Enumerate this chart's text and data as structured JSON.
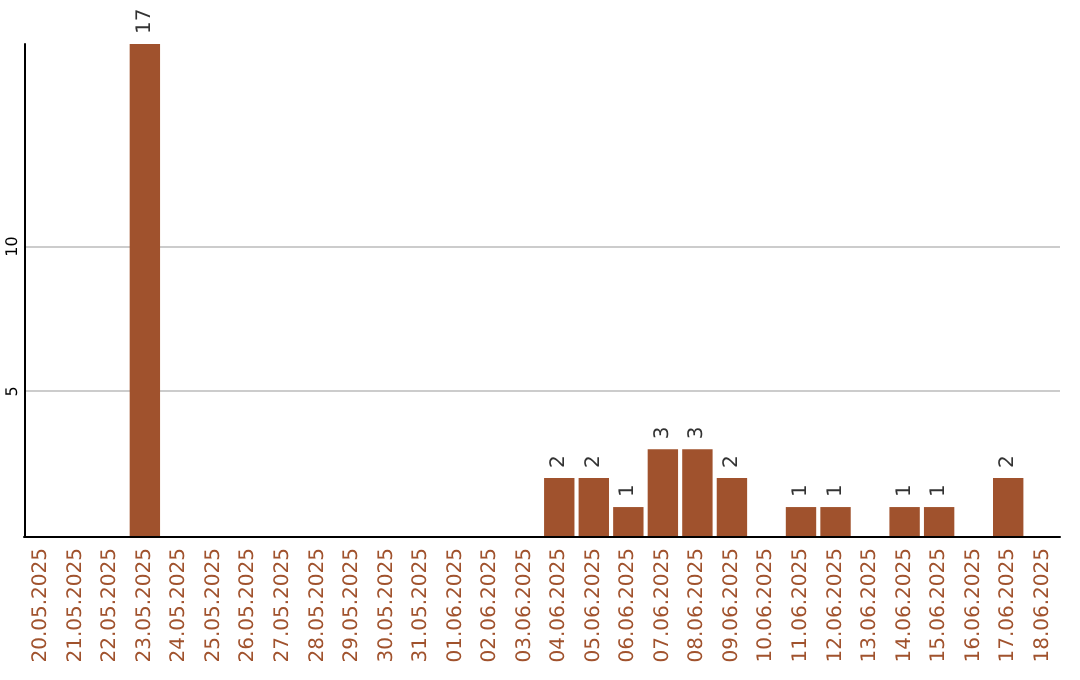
{
  "chart_data": {
    "type": "bar",
    "categories": [
      "20.05.2025",
      "21.05.2025",
      "22.05.2025",
      "23.05.2025",
      "24.05.2025",
      "25.05.2025",
      "26.05.2025",
      "27.05.2025",
      "28.05.2025",
      "29.05.2025",
      "30.05.2025",
      "31.05.2025",
      "01.06.2025",
      "02.06.2025",
      "03.06.2025",
      "04.06.2025",
      "05.06.2025",
      "06.06.2025",
      "07.06.2025",
      "08.06.2025",
      "09.06.2025",
      "10.06.2025",
      "11.06.2025",
      "12.06.2025",
      "13.06.2025",
      "14.06.2025",
      "15.06.2025",
      "16.06.2025",
      "17.06.2025",
      "18.06.2025"
    ],
    "values": [
      0,
      0,
      0,
      17,
      0,
      0,
      0,
      0,
      0,
      0,
      0,
      0,
      0,
      0,
      0,
      2,
      2,
      1,
      3,
      3,
      2,
      0,
      1,
      1,
      0,
      1,
      1,
      0,
      2,
      0
    ],
    "value_labels": [
      null,
      null,
      null,
      "17",
      null,
      null,
      null,
      null,
      null,
      null,
      null,
      null,
      null,
      null,
      null,
      "2",
      "2",
      "1",
      "3",
      "3",
      "2",
      null,
      "1",
      "1",
      null,
      "1",
      "1",
      null,
      "2",
      null
    ],
    "color": "#a0522d",
    "ylim": [
      0,
      17
    ],
    "yticks": [
      5,
      10
    ],
    "grid": "y"
  }
}
